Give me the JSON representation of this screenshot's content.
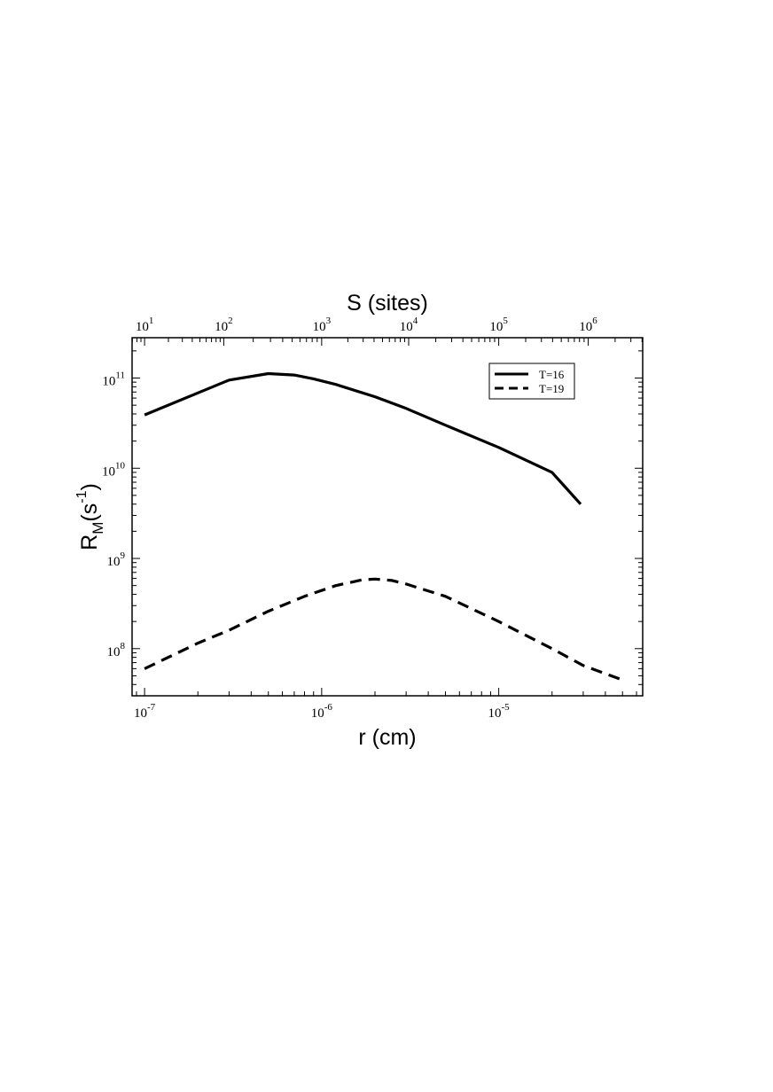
{
  "chart_data": {
    "type": "line",
    "x_scale": "log",
    "y_scale": "log",
    "xlabel": "r (cm)",
    "x2label": "S (sites)",
    "ylabel_main": "R",
    "ylabel_sub": "M",
    "ylabel_paren_open": "(s",
    "ylabel_sup": "-1",
    "ylabel_paren_close": ")",
    "xlim": [
      8.5e-08,
      6.5e-05
    ],
    "ylim": [
      30000000.0,
      280000000000.0
    ],
    "x_ticks": [
      {
        "base": "10",
        "exp": "-7",
        "value": 1e-07
      },
      {
        "base": "10",
        "exp": "-6",
        "value": 1e-06
      },
      {
        "base": "10",
        "exp": "-5",
        "value": 1e-05
      }
    ],
    "y_ticks": [
      {
        "base": "10",
        "exp": "8",
        "value": 100000000.0
      },
      {
        "base": "10",
        "exp": "9",
        "value": 1000000000.0
      },
      {
        "base": "10",
        "exp": "10",
        "value": 10000000000.0
      },
      {
        "base": "10",
        "exp": "11",
        "value": 100000000000.0
      }
    ],
    "x2_ticks": [
      {
        "base": "10",
        "exp": "1",
        "value": 1e-07
      },
      {
        "base": "10",
        "exp": "2",
        "value": 2.8e-07
      },
      {
        "base": "10",
        "exp": "3",
        "value": 1e-06
      },
      {
        "base": "10",
        "exp": "4",
        "value": 3.1e-06
      },
      {
        "base": "10",
        "exp": "5",
        "value": 1e-05
      },
      {
        "base": "10",
        "exp": "6",
        "value": 3.2e-05
      }
    ],
    "grid": false,
    "legend_position": "top-right",
    "series": [
      {
        "name": "T=16",
        "style": "solid",
        "color": "#000000",
        "x": [
          1e-07,
          3e-07,
          5e-07,
          7e-07,
          9e-07,
          1.2e-06,
          2e-06,
          3e-06,
          5e-06,
          1e-05,
          2e-05,
          2.9e-05
        ],
        "y": [
          39000000000.0,
          95000000000.0,
          112000000000.0,
          108000000000.0,
          98000000000.0,
          85000000000.0,
          62000000000.0,
          46000000000.0,
          30000000000.0,
          17000000000.0,
          9000000000.0,
          4000000000.0
        ]
      },
      {
        "name": "T=19",
        "style": "dashed",
        "color": "#000000",
        "x": [
          1e-07,
          2e-07,
          3e-07,
          5e-07,
          8e-07,
          1.2e-06,
          1.7e-06,
          2e-06,
          2.5e-06,
          3e-06,
          5e-06,
          1e-05,
          2e-05,
          3e-05,
          5e-05
        ],
        "y": [
          60000000.0,
          115000000.0,
          160000000.0,
          260000000.0,
          380000000.0,
          500000000.0,
          580000000.0,
          590000000.0,
          570000000.0,
          520000000.0,
          380000000.0,
          200000000.0,
          100000000.0,
          65000000.0,
          45000000.0
        ]
      }
    ]
  }
}
